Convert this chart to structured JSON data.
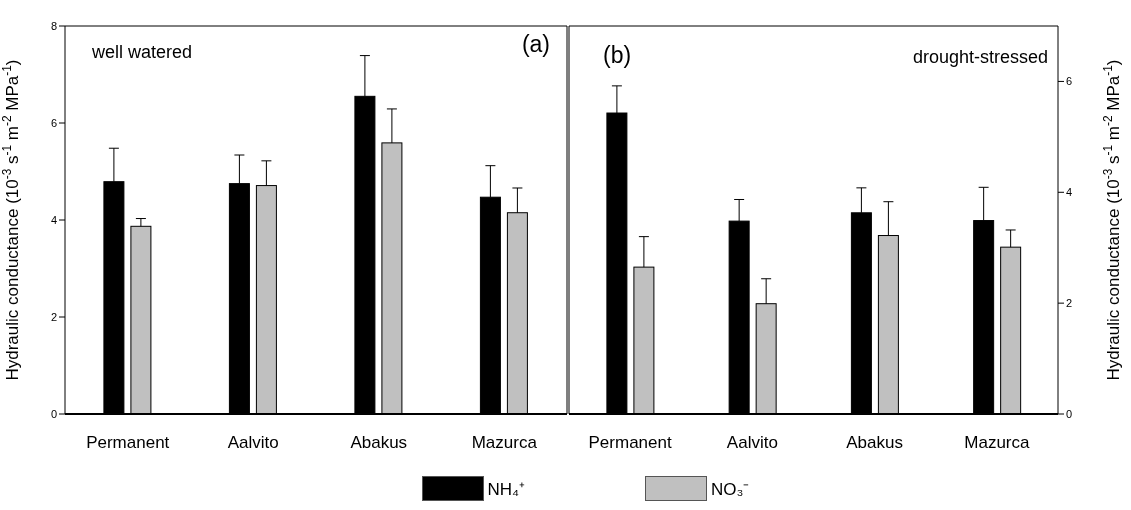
{
  "chart_data": [
    {
      "type": "bar",
      "categories": [
        "Permanent",
        "Aalvito",
        "Abakus",
        "Mazurca"
      ],
      "ylabel": "Hydraulic conductance (10$^{-3}$ s$^{-1}$ m$^{-2}$ MPa$^{-1}$)",
      "ylim": [
        0,
        8
      ],
      "yticks": [
        0,
        2,
        4,
        6,
        8
      ],
      "annotations": [
        "well watered",
        "(a)"
      ],
      "legend": "bottom",
      "series": [
        {
          "name": "NH₄⁺",
          "color": "#000000",
          "values": [
            4.79,
            4.75,
            6.55,
            4.47
          ],
          "errors": [
            [
              4.79,
              5.48
            ],
            [
              4.75,
              5.34
            ],
            [
              6.55,
              7.39
            ],
            [
              4.47,
              5.12
            ]
          ]
        },
        {
          "name": "NO₃⁻",
          "color": "#c0c0c0",
          "values": [
            3.87,
            4.71,
            5.59,
            4.15
          ],
          "errors": [
            [
              3.87,
              4.03
            ],
            [
              4.71,
              5.22
            ],
            [
              5.59,
              6.29
            ],
            [
              4.15,
              4.66
            ]
          ]
        }
      ]
    },
    {
      "type": "bar",
      "categories": [
        "Permanent",
        "Aalvito",
        "Abakus",
        "Mazurca"
      ],
      "ylabel": "Hydraulic conductance (10$^{-3}$ s$^{-1}$ m$^{-2}$ MPa$^{-1}$)",
      "ylim": [
        0,
        7
      ],
      "yticks": [
        0,
        2,
        4,
        6
      ],
      "annotations": [
        "(b)",
        "drought-stressed"
      ],
      "series": [
        {
          "color": "#000000",
          "values": [
            5.43,
            3.48,
            3.63,
            3.49
          ],
          "errors": [
            [
              5.43,
              5.92
            ],
            [
              3.48,
              3.87
            ],
            [
              3.63,
              4.08
            ],
            [
              3.49,
              4.09
            ]
          ]
        },
        {
          "color": "#c0c0c0",
          "values": [
            2.65,
            1.99,
            3.22,
            3.01
          ],
          "errors": [
            [
              2.65,
              3.2
            ],
            [
              1.99,
              2.44
            ],
            [
              3.22,
              3.83
            ],
            [
              3.01,
              3.32
            ]
          ]
        }
      ]
    }
  ]
}
